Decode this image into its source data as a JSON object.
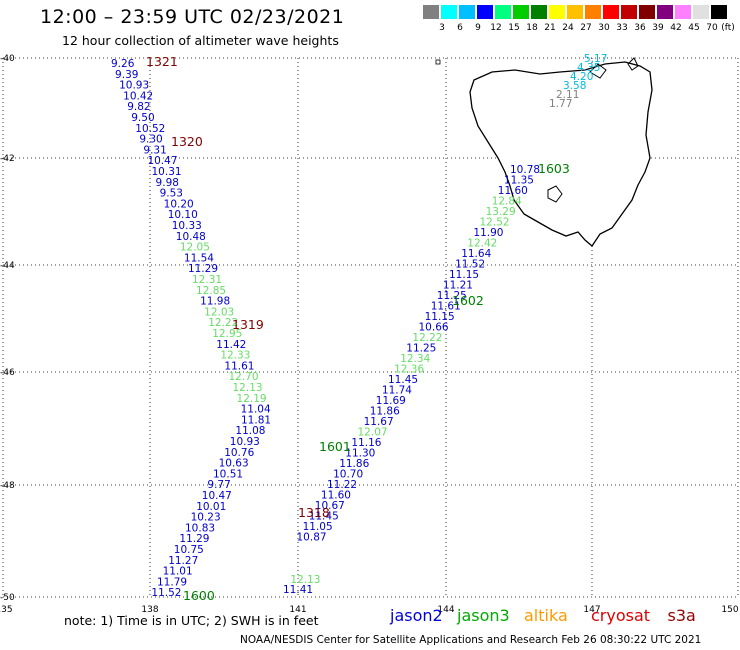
{
  "title": "12:00 – 23:59 UTC 02/23/2021",
  "subtitle": "12 hour collection of altimeter wave heights",
  "scale": {
    "colors": [
      "#808080",
      "#00ffff",
      "#00bfff",
      "#0000ff",
      "#00ff80",
      "#00cc00",
      "#008000",
      "#ffff00",
      "#ffc000",
      "#ff8000",
      "#ff0000",
      "#c00000",
      "#800000",
      "#800080",
      "#ff80ff",
      "#e0e0e0",
      "#000000"
    ],
    "labels": [
      "3",
      "6",
      "9",
      "12",
      "15",
      "18",
      "21",
      "24",
      "27",
      "30",
      "33",
      "36",
      "39",
      "42",
      "45",
      "70"
    ],
    "unit": "(ft)"
  },
  "lat_ticks": [
    "-40",
    "-42",
    "-44",
    "-46",
    "-48",
    "-50"
  ],
  "lon_ticks": [
    "135",
    "138",
    "141",
    "144",
    "147",
    "150"
  ],
  "passes": [
    {
      "id": "1321",
      "color": "#800000"
    },
    {
      "id": "1320",
      "color": "#800000"
    },
    {
      "id": "1319",
      "color": "#800000"
    },
    {
      "id": "1318",
      "color": "#800000"
    },
    {
      "id": "1603",
      "color": "#008000"
    },
    {
      "id": "1602",
      "color": "#008000"
    },
    {
      "id": "1601",
      "color": "#008000"
    },
    {
      "id": "1600",
      "color": "#008000"
    }
  ],
  "points_w": [
    [
      "9.26",
      "#0000cc"
    ],
    [
      "9.39",
      "#0000cc"
    ],
    [
      "10.93",
      "#0000cc"
    ],
    [
      "10.42",
      "#0000cc"
    ],
    [
      "9.82",
      "#0000cc"
    ],
    [
      "9.50",
      "#0000cc"
    ],
    [
      "10.52",
      "#0000cc"
    ],
    [
      "9.30",
      "#0000cc"
    ],
    [
      "9.31",
      "#0000cc"
    ],
    [
      "10.47",
      "#0000cc"
    ],
    [
      "10.31",
      "#0000cc"
    ],
    [
      "9.98",
      "#0000cc"
    ],
    [
      "9.53",
      "#0000cc"
    ],
    [
      "10.20",
      "#0000cc"
    ],
    [
      "10.10",
      "#0000cc"
    ],
    [
      "10.33",
      "#0000cc"
    ],
    [
      "10.48",
      "#0000cc"
    ],
    [
      "12.05",
      "#66dd66"
    ],
    [
      "11.54",
      "#0000cc"
    ],
    [
      "11.29",
      "#0000cc"
    ],
    [
      "12.31",
      "#66dd66"
    ],
    [
      "12.85",
      "#66dd66"
    ],
    [
      "11.98",
      "#0000cc"
    ],
    [
      "12.03",
      "#66dd66"
    ],
    [
      "12.22",
      "#66dd66"
    ],
    [
      "12.95",
      "#66dd66"
    ],
    [
      "11.42",
      "#0000cc"
    ],
    [
      "12.33",
      "#66dd66"
    ],
    [
      "11.61",
      "#0000cc"
    ],
    [
      "12.70",
      "#66dd66"
    ],
    [
      "12.13",
      "#66dd66"
    ],
    [
      "12.19",
      "#66dd66"
    ],
    [
      "11.04",
      "#0000cc"
    ],
    [
      "11.81",
      "#0000cc"
    ],
    [
      "11.08",
      "#0000cc"
    ],
    [
      "10.93",
      "#0000cc"
    ],
    [
      "10.76",
      "#0000cc"
    ],
    [
      "10.63",
      "#0000cc"
    ],
    [
      "10.51",
      "#0000cc"
    ],
    [
      "9.77",
      "#0000cc"
    ],
    [
      "10.47",
      "#0000cc"
    ],
    [
      "10.01",
      "#0000cc"
    ],
    [
      "10.23",
      "#0000cc"
    ],
    [
      "10.83",
      "#0000cc"
    ],
    [
      "11.29",
      "#0000cc"
    ],
    [
      "10.75",
      "#0000cc"
    ],
    [
      "11.27",
      "#0000cc"
    ],
    [
      "11.01",
      "#0000cc"
    ],
    [
      "11.79",
      "#0000cc"
    ],
    [
      "11.52",
      "#0000cc"
    ]
  ],
  "points_e": [
    [
      "5.17",
      "#00bbdd"
    ],
    [
      "4.35",
      "#00bbdd"
    ],
    [
      "4.20",
      "#00bbdd"
    ],
    [
      "3.58",
      "#00bbdd"
    ],
    [
      "2.11",
      "#808080"
    ],
    [
      "1.77",
      "#808080"
    ],
    [
      "10.78",
      "#0000cc"
    ],
    [
      "11.35",
      "#0000cc"
    ],
    [
      "11.60",
      "#0000cc"
    ],
    [
      "12.84",
      "#66dd66"
    ],
    [
      "13.29",
      "#66dd66"
    ],
    [
      "12.52",
      "#66dd66"
    ],
    [
      "11.90",
      "#0000cc"
    ],
    [
      "12.42",
      "#66dd66"
    ],
    [
      "11.64",
      "#0000cc"
    ],
    [
      "11.52",
      "#0000cc"
    ],
    [
      "11.15",
      "#0000cc"
    ],
    [
      "11.21",
      "#0000cc"
    ],
    [
      "11.25",
      "#0000cc"
    ],
    [
      "11.61",
      "#0000cc"
    ],
    [
      "11.15",
      "#0000cc"
    ],
    [
      "10.66",
      "#0000cc"
    ],
    [
      "12.22",
      "#66dd66"
    ],
    [
      "11.25",
      "#0000cc"
    ],
    [
      "12.34",
      "#66dd66"
    ],
    [
      "12.36",
      "#66dd66"
    ],
    [
      "11.45",
      "#0000cc"
    ],
    [
      "11.74",
      "#0000cc"
    ],
    [
      "11.69",
      "#0000cc"
    ],
    [
      "11.86",
      "#0000cc"
    ],
    [
      "11.67",
      "#0000cc"
    ],
    [
      "12.07",
      "#66dd66"
    ],
    [
      "11.16",
      "#0000cc"
    ],
    [
      "11.30",
      "#0000cc"
    ],
    [
      "11.86",
      "#0000cc"
    ],
    [
      "10.70",
      "#0000cc"
    ],
    [
      "11.22",
      "#0000cc"
    ],
    [
      "11.60",
      "#0000cc"
    ],
    [
      "10.67",
      "#0000cc"
    ],
    [
      "11.45",
      "#0000cc"
    ],
    [
      "11.05",
      "#0000cc"
    ],
    [
      "10.87",
      "#0000cc"
    ],
    [
      "12.13",
      "#66dd66"
    ],
    [
      "11.41",
      "#0000cc"
    ]
  ],
  "note": "note:  1) Time is in UTC;  2) SWH is in feet",
  "legend": [
    {
      "name": "jason2",
      "color": "#0000dd"
    },
    {
      "name": "jason3",
      "color": "#00aa00"
    },
    {
      "name": "altika",
      "color": "#ff9900"
    },
    {
      "name": "cryosat",
      "color": "#dd0000"
    },
    {
      "name": "s3a",
      "color": "#990000"
    }
  ],
  "footer": "NOAA/NESDIS Center for Satellite Applications and Research     Feb 26 08:30:22 UTC 2021"
}
